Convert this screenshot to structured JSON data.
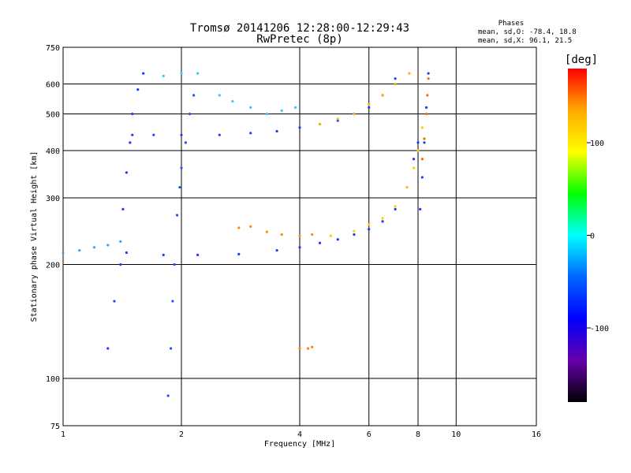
{
  "chart_data": {
    "type": "scatter",
    "title": "Tromsø 20141206 12:28:00-12:29:43",
    "subtitle": "RwPretec (8p)",
    "xlabel": "Frequency [MHz]",
    "ylabel": "Stationary phase Virtual Height [km]",
    "x_scale": "log",
    "y_scale": "log",
    "xlim": [
      1,
      16
    ],
    "ylim": [
      75,
      750
    ],
    "x_ticks": [
      1,
      2,
      4,
      6,
      8,
      10,
      16
    ],
    "y_ticks": [
      75,
      100,
      200,
      300,
      400,
      500,
      600,
      750
    ],
    "grid": true,
    "stats": {
      "header": "Phases",
      "line_o": "mean, sd,O: -78.4, 18.8",
      "line_x": "mean, sd,X:  96.1, 21.5"
    },
    "colorbar": {
      "label": "[deg]",
      "range": [
        -180,
        180
      ],
      "ticks": [
        100,
        0,
        -100
      ],
      "colors": [
        "#ff0000",
        "#ffaa00",
        "#ffff00",
        "#00ff00",
        "#00ffff",
        "#0066ff",
        "#0000ff",
        "#6600aa",
        "#000000"
      ]
    },
    "traces": [
      {
        "name": "",
        "color": "#1a3cff",
        "points": [
          [
            1.5,
            440
          ],
          [
            1.7,
            440
          ],
          [
            2.0,
            440
          ],
          [
            2.5,
            440
          ],
          [
            3.0,
            445
          ],
          [
            3.5,
            450
          ],
          [
            4.0,
            460
          ],
          [
            4.5,
            470
          ],
          [
            5.0,
            480
          ],
          [
            5.5,
            500
          ],
          [
            6.0,
            520
          ],
          [
            6.5,
            560
          ],
          [
            7.0,
            620
          ]
        ]
      },
      {
        "name": "",
        "color": "#ffb000",
        "points": [
          [
            4.5,
            470
          ],
          [
            5.0,
            485
          ],
          [
            5.5,
            500
          ],
          [
            6.0,
            530
          ],
          [
            6.5,
            560
          ],
          [
            7.0,
            600
          ],
          [
            7.6,
            640
          ]
        ]
      },
      {
        "name": "",
        "color": "#1a3cff",
        "points": [
          [
            1.45,
            215
          ],
          [
            1.8,
            212
          ],
          [
            2.2,
            212
          ],
          [
            2.8,
            213
          ],
          [
            3.5,
            218
          ],
          [
            4.0,
            222
          ],
          [
            4.5,
            228
          ],
          [
            5.0,
            233
          ],
          [
            5.5,
            240
          ],
          [
            6.0,
            248
          ],
          [
            6.5,
            260
          ],
          [
            7.0,
            280
          ],
          [
            7.5,
            320
          ],
          [
            7.8,
            380
          ],
          [
            8.0,
            420
          ]
        ]
      },
      {
        "name": "",
        "color": "#ffd000",
        "points": [
          [
            4.8,
            238
          ],
          [
            5.5,
            245
          ],
          [
            6.0,
            255
          ],
          [
            6.5,
            265
          ],
          [
            7.0,
            285
          ],
          [
            7.5,
            320
          ],
          [
            7.8,
            360
          ],
          [
            8.0,
            400
          ],
          [
            8.2,
            460
          ]
        ]
      },
      {
        "name": "",
        "color": "#ff8c00",
        "points": [
          [
            2.8,
            250
          ],
          [
            3.0,
            252
          ],
          [
            3.3,
            244
          ],
          [
            3.6,
            240
          ],
          [
            4.0,
            238
          ],
          [
            4.3,
            240
          ]
        ]
      },
      {
        "name": "",
        "color": "#1a3cff",
        "points": [
          [
            8.1,
            280
          ],
          [
            8.2,
            340
          ],
          [
            8.3,
            420
          ],
          [
            8.4,
            520
          ],
          [
            8.5,
            640
          ]
        ]
      },
      {
        "name": "",
        "color": "#ff6600",
        "points": [
          [
            8.2,
            380
          ],
          [
            8.3,
            430
          ],
          [
            8.4,
            500
          ],
          [
            8.45,
            560
          ],
          [
            8.5,
            620
          ]
        ]
      },
      {
        "name": "",
        "color": "#2aa8ff",
        "points": [
          [
            1.0,
            215
          ],
          [
            1.1,
            218
          ],
          [
            1.2,
            222
          ],
          [
            1.3,
            225
          ],
          [
            1.4,
            230
          ]
        ]
      },
      {
        "name": "",
        "color": "#33c8ff",
        "points": [
          [
            1.6,
            640
          ],
          [
            1.8,
            630
          ],
          [
            2.0,
            640
          ],
          [
            2.2,
            640
          ],
          [
            2.5,
            560
          ],
          [
            2.7,
            540
          ],
          [
            3.0,
            520
          ],
          [
            3.3,
            500
          ],
          [
            3.6,
            510
          ],
          [
            3.9,
            520
          ]
        ]
      },
      {
        "name": "",
        "color": "#ff8000",
        "points": [
          [
            4.0,
            120
          ],
          [
            4.2,
            120
          ],
          [
            4.3,
            121
          ]
        ]
      },
      {
        "name": "",
        "color": "#1a3cff",
        "points": [
          [
            1.3,
            120
          ],
          [
            1.35,
            160
          ],
          [
            1.4,
            200
          ],
          [
            1.42,
            280
          ],
          [
            1.45,
            350
          ],
          [
            1.48,
            420
          ],
          [
            1.5,
            500
          ],
          [
            1.55,
            580
          ],
          [
            1.6,
            640
          ]
        ]
      },
      {
        "name": "",
        "color": "#2050ff",
        "points": [
          [
            1.85,
            90
          ],
          [
            1.88,
            120
          ],
          [
            1.9,
            160
          ],
          [
            1.92,
            200
          ],
          [
            1.95,
            270
          ],
          [
            1.98,
            320
          ],
          [
            2.0,
            360
          ],
          [
            2.05,
            420
          ],
          [
            2.1,
            500
          ],
          [
            2.15,
            560
          ]
        ]
      }
    ]
  }
}
